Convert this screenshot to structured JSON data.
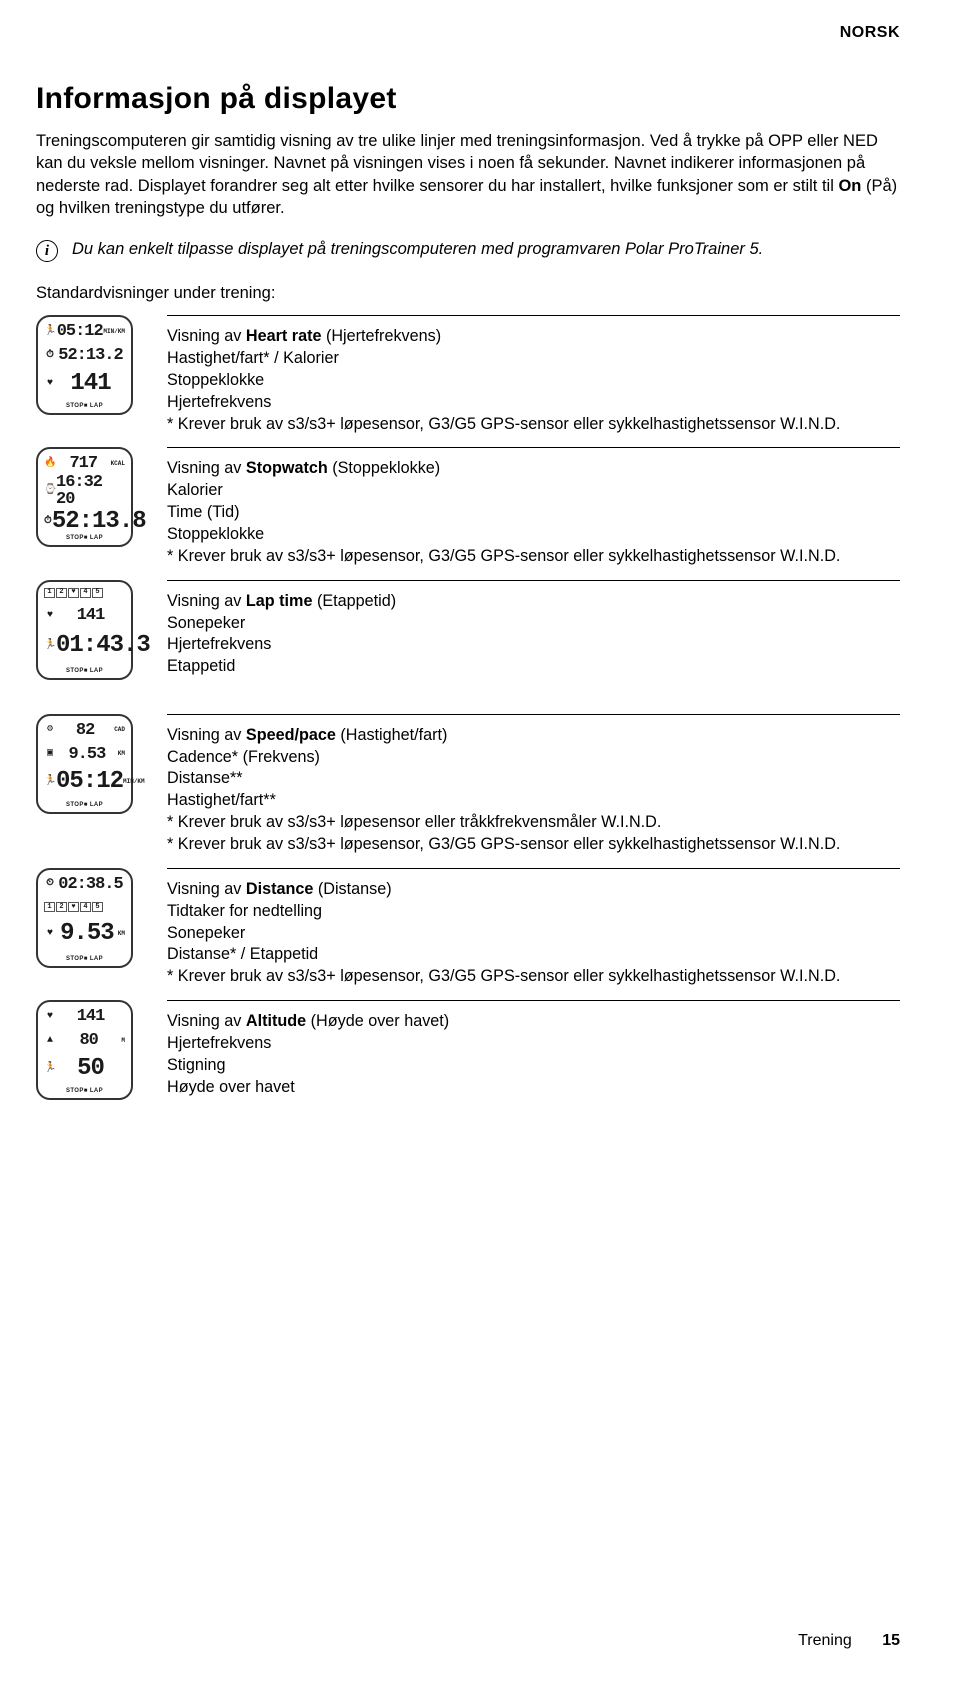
{
  "language_tag": "NORSK",
  "title": "Informasjon på displayet",
  "intro": "Treningscomputeren gir samtidig visning av tre ulike linjer med treningsinformasjon. Ved å trykke på OPP eller NED kan du veksle mellom visninger. Navnet på visningen vises i noen få sekunder. Navnet indikerer informasjonen på nederste rad. Displayet forandrer seg alt etter hvilke sensorer du har installert, hvilke funksjoner som er stilt til On (På) og hvilken treningstype du utfører.",
  "intro_keyword": "On",
  "info_note": "Du kan enkelt tilpasse displayet på treningscomputeren med programvaren Polar ProTrainer 5.",
  "subhead": "Standardvisninger under trening:",
  "sensor_note": "* Krever bruk av s3/s3+ løpesensor, G3/G5 GPS-sensor eller sykkelhastighetssensor W.I.N.D.",
  "cadence_note": "* Krever bruk av s3/s3+ løpesensor eller tråkkfrekvensmåler W.I.N.D.",
  "views": [
    {
      "title_prefix": "Visning av ",
      "title_kw": "Heart rate",
      "title_suffix": " (Hjertefrekvens)",
      "lines": [
        "Hastighet/fart* / Kalorier",
        "Stoppeklokke",
        "Hjertefrekvens",
        "* Krever bruk av s3/s3+ løpesensor, G3/G5 GPS-sensor eller sykkelhastighetssensor W.I.N.D."
      ],
      "device": {
        "r1": "05:12",
        "r1u": "MIN/KM",
        "r2": "52:13.2",
        "r3": "141",
        "icons": [
          "run",
          "clock",
          "heart"
        ]
      }
    },
    {
      "title_prefix": "Visning av ",
      "title_kw": "Stopwatch",
      "title_suffix": " (Stoppeklokke)",
      "lines": [
        "Kalorier",
        "Time (Tid)",
        "Stoppeklokke",
        "* Krever bruk av s3/s3+ løpesensor, G3/G5 GPS-sensor eller sykkelhastighetssensor W.I.N.D."
      ],
      "device": {
        "r1": "717",
        "r1u": "KCAL",
        "r2": "16:32 20",
        "r3": "52:13.8",
        "icons": [
          "fire",
          "watch",
          "clock"
        ]
      }
    },
    {
      "title_prefix": "Visning av ",
      "title_kw": "Lap time",
      "title_suffix": " (Etappetid)",
      "lines": [
        "Sonepeker",
        "Hjertefrekvens",
        "Etappetid"
      ],
      "device": {
        "zones": true,
        "r2": "141",
        "r3": "01:43.3",
        "icons": [
          "",
          "heart",
          "run"
        ]
      }
    },
    {
      "title_prefix": "Visning av ",
      "title_kw": "Speed/pace",
      "title_suffix": " (Hastighet/fart)",
      "lines": [
        "Cadence* (Frekvens)",
        "Distanse**",
        "Hastighet/fart**",
        "* Krever bruk av s3/s3+ løpesensor eller tråkkfrekvensmåler W.I.N.D.",
        "* Krever bruk av s3/s3+ løpesensor, G3/G5 GPS-sensor eller sykkelhastighetssensor W.I.N.D."
      ],
      "device": {
        "r1": "82",
        "r1u": "CAD",
        "r2": "9.53",
        "r2u": "KM",
        "r3": "05:12",
        "r3u": "MIN/KM",
        "icons": [
          "cad",
          "dist",
          "run"
        ]
      }
    },
    {
      "title_prefix": "Visning av ",
      "title_kw": "Distance",
      "title_suffix": " (Distanse)",
      "lines": [
        "Tidtaker for nedtelling",
        "Sonepeker",
        "Distanse* / Etappetid",
        "* Krever bruk av s3/s3+ løpesensor, G3/G5 GPS-sensor eller sykkelhastighetssensor W.I.N.D."
      ],
      "device": {
        "r1": "02:38.5",
        "zones_mid": true,
        "r3": "9.53",
        "r3u": "KM",
        "icons": [
          "timer",
          "",
          "heart"
        ]
      }
    },
    {
      "title_prefix": "Visning av ",
      "title_kw": "Altitude",
      "title_suffix": " (Høyde over havet)",
      "lines": [
        "Hjertefrekvens",
        "Stigning",
        "Høyde over havet"
      ],
      "device": {
        "r1": "141",
        "r2": "80",
        "r2u": "M",
        "r3": "50",
        "icons": [
          "heart",
          "up",
          "run"
        ]
      }
    }
  ],
  "footer_label": "Trening",
  "page_number": "15",
  "colors": {
    "text": "#000000",
    "bg": "#ffffff",
    "device_border": "#333333"
  }
}
